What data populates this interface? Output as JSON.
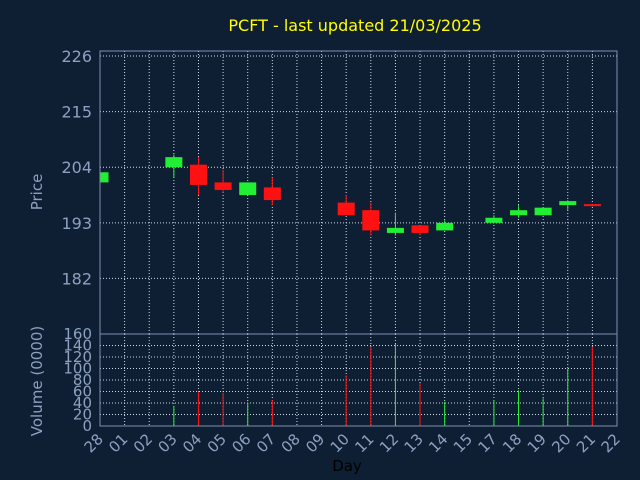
{
  "title": "PCFT - last updated 21/03/2025",
  "colors": {
    "background": "#0f1f33",
    "title": "#ffff00",
    "axis_text": "#8ca0c0",
    "frame": "#7f8fb0",
    "grid": "#d0d8e8",
    "up": "#22ee33",
    "down": "#ff1111"
  },
  "chart_data": {
    "type": "candlestick",
    "xlabel": "Day",
    "x_ticks": [
      "28",
      "01",
      "02",
      "03",
      "04",
      "05",
      "06",
      "07",
      "08",
      "09",
      "10",
      "11",
      "12",
      "13",
      "14",
      "15",
      "17",
      "18",
      "19",
      "20",
      "21",
      "22"
    ],
    "price_panel": {
      "ylabel": "Price",
      "ylim": [
        171,
        227
      ],
      "y_ticks": [
        182,
        193,
        204,
        215,
        226
      ],
      "grid": true
    },
    "volume_panel": {
      "ylabel": "Volume (0000)",
      "ylim": [
        0,
        160
      ],
      "y_ticks": [
        0,
        20,
        40,
        60,
        80,
        100,
        120,
        140,
        160
      ],
      "grid": true
    },
    "candles": [
      {
        "day": "28",
        "open": 201,
        "high": 203,
        "low": 201,
        "close": 203,
        "volume": 0
      },
      {
        "day": "03",
        "open": 204,
        "high": 206.5,
        "low": 202,
        "close": 206,
        "volume": 35
      },
      {
        "day": "04",
        "open": 204.5,
        "high": 206,
        "low": 198.5,
        "close": 200.5,
        "volume": 60
      },
      {
        "day": "05",
        "open": 201,
        "high": 203.5,
        "low": 199,
        "close": 199.5,
        "volume": 58
      },
      {
        "day": "06",
        "open": 198.5,
        "high": 201,
        "low": 198.5,
        "close": 201,
        "volume": 40
      },
      {
        "day": "07",
        "open": 200,
        "high": 202,
        "low": 196.5,
        "close": 197.5,
        "volume": 45
      },
      {
        "day": "10",
        "open": 197,
        "high": 198.5,
        "low": 194.5,
        "close": 194.5,
        "volume": 88
      },
      {
        "day": "11",
        "open": 195.5,
        "high": 197,
        "low": 190.5,
        "close": 191.5,
        "volume": 138
      },
      {
        "day": "12",
        "open": 191,
        "high": 195,
        "low": 190.5,
        "close": 192,
        "volume": 143
      },
      {
        "day": "13",
        "open": 192.5,
        "high": 192.5,
        "low": 190.5,
        "close": 191,
        "volume": 75
      },
      {
        "day": "14",
        "open": 191.5,
        "high": 193.5,
        "low": 191.5,
        "close": 193,
        "volume": 42
      },
      {
        "day": "17",
        "open": 193,
        "high": 194.5,
        "low": 193,
        "close": 194,
        "volume": 45
      },
      {
        "day": "18",
        "open": 194.5,
        "high": 196.5,
        "low": 194,
        "close": 195.5,
        "volume": 62
      },
      {
        "day": "19",
        "open": 194.5,
        "high": 196,
        "low": 194.5,
        "close": 196,
        "volume": 48
      },
      {
        "day": "20",
        "open": 196.5,
        "high": 197.5,
        "low": 195.5,
        "close": 197.3,
        "volume": 100
      },
      {
        "day": "21",
        "open": 196.5,
        "high": 196.5,
        "low": 196.3,
        "close": 196.3,
        "volume": 138
      }
    ]
  }
}
